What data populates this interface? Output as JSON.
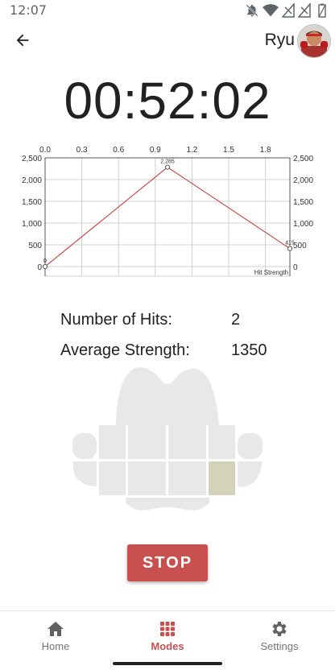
{
  "status_bar": {
    "time": "12:07",
    "icons": [
      "notifications-off-icon",
      "wifi-icon",
      "signal-icon",
      "signal-icon-2",
      "battery-icon"
    ]
  },
  "header": {
    "back_icon": "arrow-back-icon",
    "user_name": "Ryu",
    "avatar_icon": "avatar-icon"
  },
  "timer": "00:52:02",
  "chart_data": {
    "type": "line",
    "title": "",
    "x": [
      0,
      1,
      2
    ],
    "y": [
      0,
      2285,
      415
    ],
    "point_labels": [
      "0",
      "2,285",
      "415"
    ],
    "x_ticks": [
      "0.0",
      "0.3",
      "0.6",
      "0.9",
      "1.2",
      "1.5",
      "1.8"
    ],
    "x_tick_values": [
      0,
      0.3,
      0.6,
      0.9,
      1.2,
      1.5,
      1.8
    ],
    "y_ticks": [
      "0",
      "500",
      "1,000",
      "1,500",
      "2,000",
      "2,500"
    ],
    "y_tick_values": [
      0,
      500,
      1000,
      1500,
      2000,
      2500
    ],
    "xlim": [
      0,
      2
    ],
    "ylim": [
      0,
      2500
    ],
    "series_label": "Hit Strength",
    "grid": true,
    "line_color": "#c9504f"
  },
  "stats": {
    "hits_label": "Number of Hits:",
    "hits_value": "2",
    "strength_label": "Average Strength:",
    "strength_value": "1350"
  },
  "target": {
    "highlighted_cell": [
      1,
      4
    ],
    "highlight_color": "#d4d2b9",
    "body_color": "#e8e8e8"
  },
  "stop_button": {
    "label": "STOP",
    "color": "#c9504f"
  },
  "bottom_nav": {
    "items": [
      {
        "label": "Home",
        "icon": "home-icon",
        "active": false
      },
      {
        "label": "Modes",
        "icon": "grid-icon",
        "active": true
      },
      {
        "label": "Settings",
        "icon": "gear-icon",
        "active": false
      }
    ],
    "active_color": "#c9504f"
  }
}
